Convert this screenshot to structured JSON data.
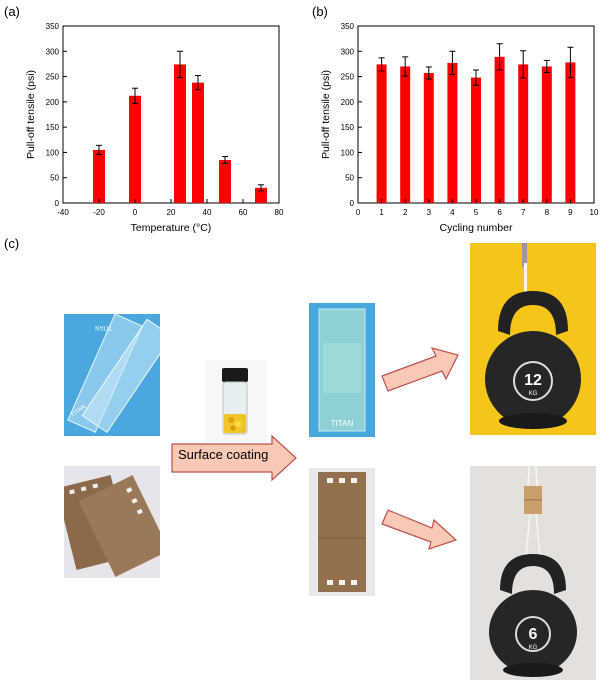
{
  "panel_labels": {
    "a": "(a)",
    "b": "(b)",
    "c": "(c)"
  },
  "chart_data": [
    {
      "panel": "(a)",
      "type": "bar",
      "xlabel": "Temperature (°C)",
      "ylabel": "Pull-off tensile (psi)",
      "xlim": [
        -40,
        80
      ],
      "ylim": [
        0,
        350
      ],
      "x_ticks": [
        -40,
        -20,
        0,
        20,
        40,
        60,
        80
      ],
      "y_ticks": [
        0,
        50,
        100,
        150,
        200,
        250,
        300,
        350
      ],
      "x": [
        -20,
        0,
        25,
        35,
        50,
        70
      ],
      "values": [
        105,
        212,
        274,
        238,
        85,
        30
      ],
      "errors": [
        9,
        15,
        26,
        14,
        7,
        6
      ],
      "bar_color": "#ff0000",
      "grid": false
    },
    {
      "panel": "(b)",
      "type": "bar",
      "xlabel": "Cycling number",
      "ylabel": "Pull-off tensile (psi)",
      "xlim": [
        0,
        10
      ],
      "ylim": [
        0,
        350
      ],
      "x_ticks": [
        0,
        1,
        2,
        3,
        4,
        5,
        6,
        7,
        8,
        9,
        10
      ],
      "y_ticks": [
        0,
        50,
        100,
        150,
        200,
        250,
        300,
        350
      ],
      "x": [
        1,
        2,
        3,
        4,
        5,
        6,
        7,
        8,
        9
      ],
      "values": [
        274,
        270,
        257,
        277,
        248,
        289,
        274,
        270,
        278
      ],
      "errors": [
        13,
        19,
        12,
        23,
        15,
        26,
        27,
        12,
        30
      ],
      "bar_color": "#ff0000",
      "grid": false
    }
  ],
  "panel_c": {
    "coating_label": "Surface coating",
    "glass_slide_text": "TITAN",
    "kettlebell_large": {
      "number": "12",
      "unit": "KG"
    },
    "kettlebell_small": {
      "number": "6",
      "unit": "KG"
    },
    "arrow_fill": "#f8c9b4",
    "arrow_stroke": "#c0504d"
  }
}
